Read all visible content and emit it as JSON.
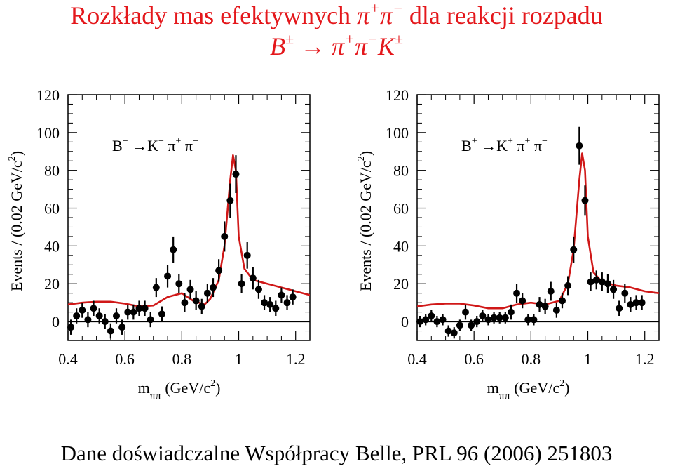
{
  "title": {
    "line1_prefix": "Rozkłady mas efektywnych ",
    "line1_sym_a": "π",
    "line1_sup_a": "+",
    "line1_sym_b": "π",
    "line1_sup_b": "−",
    "line1_suffix": " dla reakcji rozpadu",
    "line2_b": "B",
    "line2_b_sup": "±",
    "line2_arrow": "→",
    "line2_pi1": "π",
    "line2_pi1_sup": "+",
    "line2_pi2": "π",
    "line2_pi2_sup": "−",
    "line2_k": "K",
    "line2_k_sup": "±"
  },
  "footer": "Dane doświadczalne Współpracy Belle, PRL 96 (2006) 251803",
  "colors": {
    "title": "#e4171b",
    "fit": "#d01818",
    "points": "#000000"
  },
  "chart_data": [
    {
      "type": "scatter",
      "label": "B − → K − π + π −",
      "label_parts": {
        "b": "B",
        "b_sup": "−",
        "arrow": "→",
        "k": "K",
        "k_sup": "−",
        "pi1": "π",
        "pi1_sup": "+",
        "pi2": "π",
        "pi2_sup": "−"
      },
      "xlabel": "m",
      "xlabel_sub": "ππ",
      "xlabel_unit": " (GeV/c",
      "xlabel_unit_sup": "2",
      "xlabel_close": ")",
      "ylabel": "Events / (0.02 GeV/c",
      "ylabel_sup": "2",
      "ylabel_close": ")",
      "xlim": [
        0.4,
        1.25
      ],
      "ylim": [
        -10,
        120
      ],
      "xticks": [
        0.4,
        0.6,
        0.8,
        1.0,
        1.2
      ],
      "xtick_labels": [
        "0.4",
        "0.6",
        "0.8",
        "1",
        "1.2"
      ],
      "yticks": [
        0,
        20,
        40,
        60,
        80,
        100,
        120
      ],
      "ytick_labels": [
        "0",
        "20",
        "40",
        "60",
        "80",
        "100",
        "120"
      ],
      "x": [
        0.41,
        0.43,
        0.45,
        0.47,
        0.49,
        0.51,
        0.53,
        0.55,
        0.57,
        0.59,
        0.61,
        0.63,
        0.65,
        0.67,
        0.69,
        0.71,
        0.73,
        0.75,
        0.77,
        0.79,
        0.81,
        0.83,
        0.85,
        0.87,
        0.89,
        0.91,
        0.93,
        0.95,
        0.97,
        0.99,
        1.01,
        1.03,
        1.05,
        1.07,
        1.09,
        1.11,
        1.13,
        1.15,
        1.17,
        1.19
      ],
      "y": [
        -3,
        3,
        6,
        1,
        7,
        3,
        0,
        -5,
        3,
        -3,
        5,
        5,
        7,
        7,
        1,
        18,
        4,
        24,
        38,
        20,
        10,
        17,
        11,
        8,
        15,
        18,
        27,
        45,
        64,
        78,
        20,
        35,
        23,
        17,
        10,
        9,
        7,
        14,
        10,
        13
      ],
      "err": [
        4,
        4,
        4,
        4,
        4,
        4,
        4,
        4,
        4,
        4,
        4,
        4,
        4,
        4,
        4,
        5,
        4,
        6,
        7,
        5,
        5,
        5,
        5,
        4,
        5,
        5,
        6,
        8,
        9,
        10,
        5,
        7,
        6,
        5,
        4,
        4,
        4,
        4,
        4,
        4
      ],
      "fit": {
        "x": [
          0.4,
          0.45,
          0.5,
          0.55,
          0.6,
          0.65,
          0.7,
          0.75,
          0.8,
          0.84,
          0.88,
          0.9,
          0.93,
          0.95,
          0.97,
          0.98,
          0.99,
          1.0,
          1.02,
          1.05,
          1.1,
          1.15,
          1.2,
          1.25
        ],
        "y": [
          9,
          10,
          10.5,
          10.5,
          9.5,
          8,
          8.5,
          13,
          15,
          11,
          9,
          12,
          22,
          40,
          75,
          88,
          80,
          45,
          28,
          22,
          20,
          18,
          16,
          14
        ]
      }
    },
    {
      "type": "scatter",
      "label": "B + → K + π + π −",
      "label_parts": {
        "b": "B",
        "b_sup": "+",
        "arrow": "→",
        "k": "K",
        "k_sup": "+",
        "pi1": "π",
        "pi1_sup": "+",
        "pi2": "π",
        "pi2_sup": "−"
      },
      "xlabel": "m",
      "xlabel_sub": "ππ",
      "xlabel_unit": " (GeV/c",
      "xlabel_unit_sup": "2",
      "xlabel_close": ")",
      "ylabel": "Events / (0.02 GeV/c",
      "ylabel_sup": "2",
      "ylabel_close": ")",
      "xlim": [
        0.4,
        1.25
      ],
      "ylim": [
        -10,
        120
      ],
      "xticks": [
        0.4,
        0.6,
        0.8,
        1.0,
        1.2
      ],
      "xtick_labels": [
        "0.4",
        "0.6",
        "0.8",
        "1",
        "1.2"
      ],
      "yticks": [
        0,
        20,
        40,
        60,
        80,
        100,
        120
      ],
      "ytick_labels": [
        "0",
        "20",
        "40",
        "60",
        "80",
        "100",
        "120"
      ],
      "x": [
        0.41,
        0.43,
        0.45,
        0.47,
        0.49,
        0.51,
        0.53,
        0.55,
        0.57,
        0.59,
        0.61,
        0.63,
        0.65,
        0.67,
        0.69,
        0.71,
        0.73,
        0.75,
        0.77,
        0.79,
        0.81,
        0.83,
        0.85,
        0.87,
        0.89,
        0.91,
        0.93,
        0.95,
        0.97,
        0.99,
        1.01,
        1.03,
        1.05,
        1.07,
        1.09,
        1.11,
        1.13,
        1.15,
        1.17,
        1.19
      ],
      "y": [
        0,
        1,
        3,
        0,
        1,
        -5,
        -6,
        -2,
        5,
        -2,
        0,
        3,
        1,
        2,
        2,
        2,
        5,
        15,
        11,
        1,
        1,
        9,
        8,
        16,
        6,
        11,
        19,
        38,
        93,
        64,
        21,
        22,
        21,
        20,
        17,
        7,
        15,
        9,
        10,
        10
      ],
      "err": [
        3,
        3,
        3,
        3,
        3,
        3,
        3,
        3,
        4,
        3,
        3,
        3,
        3,
        3,
        3,
        3,
        4,
        5,
        4,
        3,
        3,
        4,
        4,
        5,
        4,
        4,
        5,
        7,
        10,
        8,
        5,
        5,
        5,
        5,
        5,
        4,
        5,
        4,
        4,
        4
      ],
      "fit": {
        "x": [
          0.4,
          0.45,
          0.5,
          0.55,
          0.6,
          0.65,
          0.7,
          0.75,
          0.8,
          0.85,
          0.9,
          0.93,
          0.95,
          0.97,
          0.98,
          0.99,
          1.0,
          1.02,
          1.05,
          1.1,
          1.15,
          1.2,
          1.25
        ],
        "y": [
          8,
          9,
          9.5,
          9.5,
          8.5,
          7,
          7,
          9,
          10,
          9,
          11,
          20,
          38,
          75,
          89,
          80,
          45,
          26,
          21,
          19,
          18,
          16,
          15
        ]
      }
    }
  ]
}
